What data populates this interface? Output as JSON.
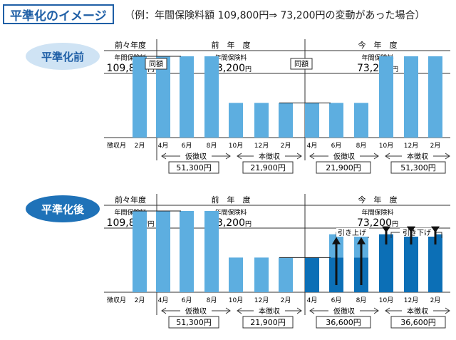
{
  "title": "平準化のイメージ",
  "subtitle": "（例：年間保険料額 109,800円⇒ 73,200円の変動があった場合）",
  "colors": {
    "light_bar": "#5daee0",
    "dark_bar": "#0c6fb6",
    "accent": "#1f5fa6"
  },
  "headers": {
    "prev2": "前々年度",
    "prev": "前　年　度",
    "curr": "今　年　度",
    "annual_label": "年間保険料",
    "yen": "円",
    "collection_month": "徴収月",
    "interim": "仮徴収",
    "main": "本徴収"
  },
  "sections": [
    {
      "label": "平準化前",
      "prev2_amount": "109,800",
      "prev_amount": "73,200",
      "curr_amount": "73,200",
      "same_label": "同額",
      "boxes": [
        "51,300円",
        "21,900円",
        "21,900円",
        "51,300円"
      ]
    },
    {
      "label": "平準化後",
      "prev2_amount": "109,800",
      "prev_amount": "73,200",
      "curr_amount": "73,200",
      "raise_label": "引き上げ",
      "lower_label": "引き下げ",
      "boxes": [
        "51,300円",
        "21,900円",
        "36,600円",
        "36,600円"
      ]
    }
  ],
  "months": [
    "2月",
    "4月",
    "6月",
    "8月",
    "10月",
    "12月",
    "2月",
    "4月",
    "6月",
    "8月",
    "10月",
    "12月",
    "2月"
  ],
  "chart_data": [
    {
      "type": "bar",
      "categories": [
        "2月",
        "4月",
        "6月",
        "8月",
        "10月",
        "12月",
        "2月",
        "4月",
        "6月",
        "8月",
        "10月",
        "12月",
        "2月"
      ],
      "values": [
        17100,
        17100,
        17100,
        17100,
        7300,
        7300,
        7300,
        7300,
        7300,
        7300,
        17100,
        17100,
        17100
      ]
    },
    {
      "type": "bar",
      "categories": [
        "2月",
        "4月",
        "6月",
        "8月",
        "10月",
        "12月",
        "2月",
        "4月",
        "6月",
        "8月",
        "10月",
        "12月",
        "2月"
      ],
      "values": [
        17100,
        17100,
        17100,
        17100,
        7300,
        7300,
        7300,
        7300,
        12200,
        12200,
        12200,
        12200,
        12200
      ]
    }
  ]
}
